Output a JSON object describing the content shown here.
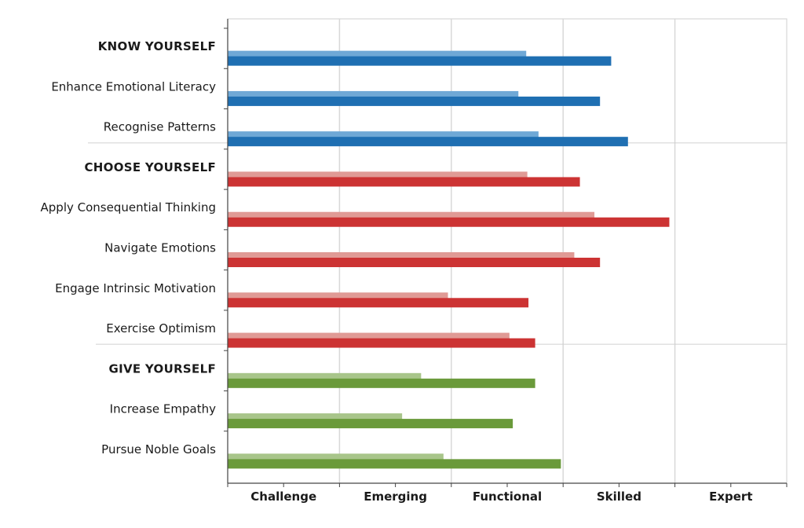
{
  "chart_data": {
    "type": "bar",
    "orientation": "horizontal",
    "xlim": [
      0,
      5
    ],
    "x_tick_labels": [
      "Challenge",
      "Emerging",
      "Functional",
      "Skilled",
      "Expert"
    ],
    "categories": [
      {
        "label": "KNOW YOURSELF",
        "group_header": true,
        "color": "#1f6fb2",
        "light": 2.67,
        "dark": 3.43
      },
      {
        "label": "Enhance Emotional Literacy",
        "group_header": false,
        "color": "#1f6fb2",
        "light": 2.6,
        "dark": 3.33
      },
      {
        "label": "Recognise Patterns",
        "group_header": false,
        "color": "#1f6fb2",
        "light": 2.78,
        "dark": 3.58
      },
      {
        "label": "CHOOSE YOURSELF",
        "group_header": true,
        "color": "#cc3333",
        "light": 2.68,
        "dark": 3.15
      },
      {
        "label": "Apply Consequential Thinking",
        "group_header": false,
        "color": "#cc3333",
        "light": 3.28,
        "dark": 3.95
      },
      {
        "label": "Navigate Emotions",
        "group_header": false,
        "color": "#cc3333",
        "light": 3.1,
        "dark": 3.33
      },
      {
        "label": "Engage Intrinsic Motivation",
        "group_header": false,
        "color": "#cc3333",
        "light": 1.97,
        "dark": 2.69
      },
      {
        "label": "Exercise Optimism",
        "group_header": false,
        "color": "#cc3333",
        "light": 2.52,
        "dark": 2.75
      },
      {
        "label": "GIVE YOURSELF",
        "group_header": true,
        "color": "#6a9a3a",
        "light": 1.73,
        "dark": 2.75
      },
      {
        "label": "Increase Empathy",
        "group_header": false,
        "color": "#6a9a3a",
        "light": 1.56,
        "dark": 2.55
      },
      {
        "label": "Pursue Noble Goals",
        "group_header": false,
        "color": "#6a9a3a",
        "light": 1.93,
        "dark": 2.98
      }
    ],
    "colors": {
      "blue_dark": "#1f6fb2",
      "blue_light": "#6fa8d6",
      "red_dark": "#cc3333",
      "red_light": "#e09a95",
      "green_dark": "#6a9a3a",
      "green_light": "#a8c58a",
      "gridline": "#d8d8d8",
      "axis": "#444444"
    },
    "grid": true
  }
}
